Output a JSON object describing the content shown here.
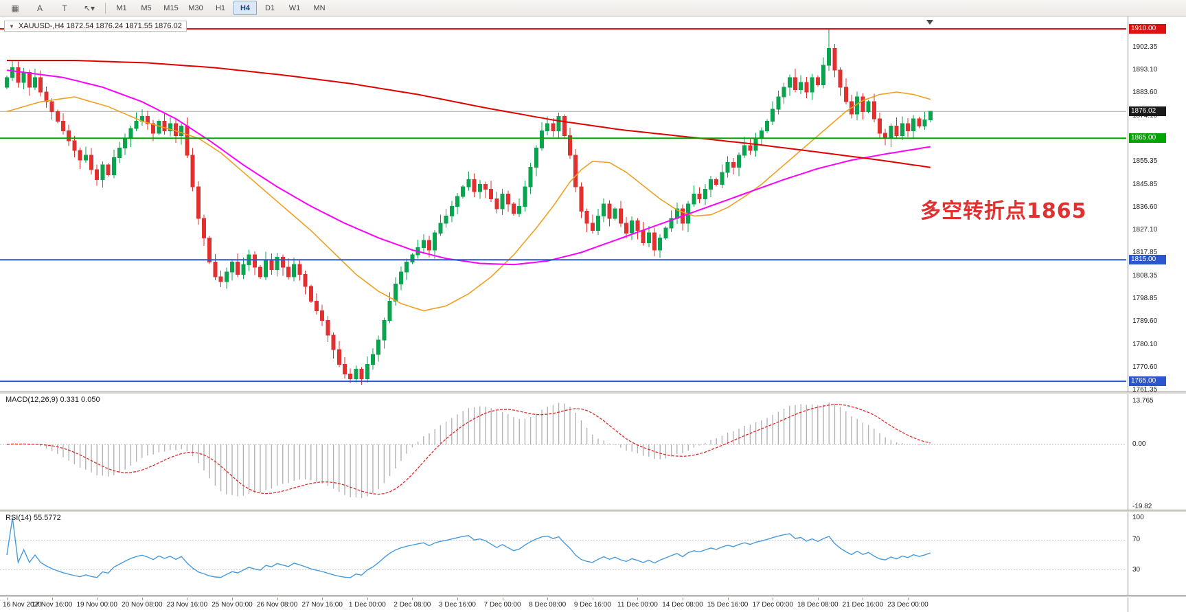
{
  "toolbar": {
    "items": [
      {
        "name": "charts-grid-button",
        "glyph": "▦"
      },
      {
        "name": "cursor-a-button",
        "glyph": "A"
      },
      {
        "name": "text-tool-button",
        "glyph": "T"
      },
      {
        "name": "drawing-tools-button",
        "glyph": "↖▾"
      }
    ],
    "timeframes": [
      "M1",
      "M5",
      "M15",
      "M30",
      "H1",
      "H4",
      "D1",
      "W1",
      "MN"
    ],
    "active_timeframe": "H4"
  },
  "chart": {
    "symbol_header": {
      "collapse_icon": "▼",
      "text": "XAUUSD-,H4 1872.54 1876.24 1871.55 1876.02"
    },
    "annotation": {
      "text": "多空转折点1865",
      "color": "#e03131"
    },
    "current_price": {
      "value": 1876.02,
      "label": "1876.02",
      "badge_color": "#1a1a1a",
      "line_color": "#a8a8a8"
    },
    "levels": [
      {
        "price": 1910.0,
        "label": "1910.00",
        "color": "#dd1111"
      },
      {
        "price": 1865.0,
        "label": "1865.00",
        "color": "#00a500"
      },
      {
        "price": 1815.0,
        "label": "1815.00",
        "color": "#2c55d0"
      },
      {
        "price": 1765.0,
        "label": "1765.00",
        "color": "#2c55d0"
      }
    ],
    "price_ticks": [
      1902.35,
      1893.1,
      1883.6,
      1874.1,
      1864.85,
      1855.35,
      1845.85,
      1836.6,
      1827.1,
      1817.85,
      1808.35,
      1798.85,
      1789.6,
      1780.1,
      1770.6,
      1761.35
    ],
    "time_labels": [
      "16 Nov 2020",
      "17 Nov 16:00",
      "19 Nov 00:00",
      "20 Nov 08:00",
      "23 Nov 16:00",
      "25 Nov 00:00",
      "26 Nov 08:00",
      "27 Nov 16:00",
      "1 Dec 00:00",
      "2 Dec 08:00",
      "3 Dec 16:00",
      "7 Dec 00:00",
      "8 Dec 08:00",
      "9 Dec 16:00",
      "11 Dec 00:00",
      "14 Dec 08:00",
      "15 Dec 16:00",
      "17 Dec 00:00",
      "18 Dec 08:00",
      "21 Dec 16:00",
      "23 Dec 00:00"
    ]
  },
  "chart_data": {
    "type": "candlestick",
    "symbol": "XAUUSD-",
    "timeframe": "H4",
    "title": "XAUUSD- H4 candlestick chart with MACD and RSI",
    "ylim": [
      1761.35,
      1910.0
    ],
    "last_ohlc": {
      "open": 1872.54,
      "high": 1876.24,
      "low": 1871.55,
      "close": 1876.02
    },
    "colors": {
      "up": "#0aa34e",
      "down": "#e03030"
    },
    "first_open": 1886,
    "closes": [
      1890,
      1894,
      1888,
      1892,
      1886,
      1890,
      1884,
      1880,
      1876,
      1872,
      1868,
      1864,
      1860,
      1856,
      1858,
      1852,
      1848,
      1854,
      1850,
      1857,
      1861,
      1865,
      1869,
      1872,
      1874,
      1871,
      1867,
      1872,
      1868,
      1871,
      1866,
      1870,
      1858,
      1845,
      1832,
      1824,
      1814,
      1808,
      1806,
      1810,
      1814,
      1809,
      1813,
      1817,
      1812,
      1808,
      1815,
      1811,
      1816,
      1812,
      1808,
      1813,
      1809,
      1804,
      1798,
      1794,
      1790,
      1784,
      1778,
      1772,
      1768,
      1766,
      1770,
      1766,
      1772,
      1776,
      1782,
      1790,
      1798,
      1805,
      1810,
      1814,
      1817,
      1820,
      1823,
      1819,
      1826,
      1830,
      1833,
      1837,
      1841,
      1845,
      1848,
      1843,
      1846,
      1844,
      1840,
      1836,
      1842,
      1838,
      1834,
      1837,
      1845,
      1853,
      1861,
      1868,
      1871,
      1868,
      1874,
      1866,
      1858,
      1845,
      1835,
      1830,
      1827,
      1833,
      1838,
      1832,
      1836,
      1830,
      1826,
      1831,
      1827,
      1822,
      1826,
      1819,
      1824,
      1828,
      1832,
      1836,
      1830,
      1838,
      1842,
      1840,
      1844,
      1848,
      1846,
      1851,
      1855,
      1853,
      1858,
      1862,
      1860,
      1865,
      1868,
      1872,
      1877,
      1882,
      1886,
      1890,
      1885,
      1888,
      1884,
      1890,
      1887,
      1895,
      1902,
      1893,
      1886,
      1880,
      1875,
      1882,
      1876,
      1880,
      1873,
      1867,
      1865,
      1870,
      1866,
      1871,
      1868,
      1873,
      1870,
      1872.54,
      1876.02
    ],
    "overrides": {
      "61": {
        "l": 1764.2
      },
      "62": {
        "l": 1764.6
      },
      "63": {
        "l": 1763.6
      },
      "146": {
        "h": 1910.0
      },
      "164": {
        "o": 1872.54,
        "h": 1876.24,
        "l": 1871.55,
        "c": 1876.02
      }
    },
    "moving_averages": [
      {
        "name": "ma-slow-red",
        "color": "#e00000",
        "width": 2,
        "points": [
          [
            0,
            1897
          ],
          [
            12,
            1897
          ],
          [
            25,
            1896
          ],
          [
            37,
            1894
          ],
          [
            49,
            1891
          ],
          [
            61,
            1887.5
          ],
          [
            73,
            1883
          ],
          [
            85,
            1877.5
          ],
          [
            97,
            1872.5
          ],
          [
            109,
            1868.5
          ],
          [
            121,
            1865.5
          ],
          [
            133,
            1862.5
          ],
          [
            145,
            1859
          ],
          [
            155,
            1856
          ],
          [
            164,
            1853
          ]
        ]
      },
      {
        "name": "ma-mid-magenta",
        "color": "#ff00ff",
        "width": 2,
        "points": [
          [
            0,
            1893
          ],
          [
            10,
            1890
          ],
          [
            17,
            1886
          ],
          [
            24,
            1880
          ],
          [
            30,
            1873
          ],
          [
            36,
            1864
          ],
          [
            42,
            1854
          ],
          [
            48,
            1845
          ],
          [
            54,
            1837
          ],
          [
            60,
            1830
          ],
          [
            66,
            1824
          ],
          [
            72,
            1819
          ],
          [
            78,
            1815.5
          ],
          [
            84,
            1813.5
          ],
          [
            90,
            1813
          ],
          [
            96,
            1814.5
          ],
          [
            102,
            1818
          ],
          [
            108,
            1823
          ],
          [
            114,
            1828
          ],
          [
            120,
            1833
          ],
          [
            126,
            1838
          ],
          [
            132,
            1843
          ],
          [
            138,
            1848
          ],
          [
            144,
            1852.5
          ],
          [
            150,
            1856
          ],
          [
            156,
            1858.5
          ],
          [
            160,
            1860
          ],
          [
            164,
            1861.5
          ]
        ]
      },
      {
        "name": "ma-fast-orange",
        "color": "#efa020",
        "width": 1.6,
        "points": [
          [
            0,
            1876
          ],
          [
            6,
            1880
          ],
          [
            12,
            1882
          ],
          [
            18,
            1878
          ],
          [
            24,
            1872
          ],
          [
            30,
            1868
          ],
          [
            34,
            1865
          ],
          [
            38,
            1859
          ],
          [
            42,
            1851
          ],
          [
            46,
            1843
          ],
          [
            50,
            1835
          ],
          [
            54,
            1827
          ],
          [
            58,
            1818
          ],
          [
            62,
            1809
          ],
          [
            66,
            1802
          ],
          [
            70,
            1797
          ],
          [
            74,
            1794
          ],
          [
            78,
            1796
          ],
          [
            82,
            1801
          ],
          [
            86,
            1808
          ],
          [
            90,
            1817
          ],
          [
            94,
            1828
          ],
          [
            97,
            1837
          ],
          [
            100,
            1847
          ],
          [
            102,
            1852
          ],
          [
            104,
            1855.5
          ],
          [
            107,
            1855
          ],
          [
            110,
            1851
          ],
          [
            113,
            1845.5
          ],
          [
            116,
            1840
          ],
          [
            119,
            1835.5
          ],
          [
            122,
            1833
          ],
          [
            125,
            1833.5
          ],
          [
            128,
            1836.5
          ],
          [
            131,
            1841
          ],
          [
            134,
            1846
          ],
          [
            137,
            1852
          ],
          [
            140,
            1858
          ],
          [
            143,
            1864
          ],
          [
            146,
            1870
          ],
          [
            149,
            1876
          ],
          [
            152,
            1880.5
          ],
          [
            155,
            1883
          ],
          [
            158,
            1884
          ],
          [
            161,
            1883
          ],
          [
            164,
            1881
          ]
        ]
      }
    ],
    "indicators": [
      {
        "name": "MACD",
        "header": "MACD(12,26,9) 0.331 0.050",
        "params": [
          12,
          26,
          9
        ],
        "values": [
          0.331,
          0.05
        ],
        "axis_labels": [
          {
            "value": 13.765,
            "text": "13.765"
          },
          {
            "value": 0,
            "text": "0.00"
          },
          {
            "value": -19.82,
            "text": "-19.82"
          }
        ],
        "histogram_color": "#b3b3b3",
        "signal_color": "#e02828"
      },
      {
        "name": "RSI",
        "header": "RSI(14) 55.5772",
        "params": [
          14
        ],
        "value": 55.5772,
        "levels": [
          70,
          30
        ],
        "axis_labels": [
          {
            "value": 100,
            "text": "100"
          },
          {
            "value": 70,
            "text": "70"
          },
          {
            "value": 30,
            "text": "30"
          }
        ],
        "line_color": "#459add",
        "level_color": "#c8c8c8"
      }
    ]
  }
}
